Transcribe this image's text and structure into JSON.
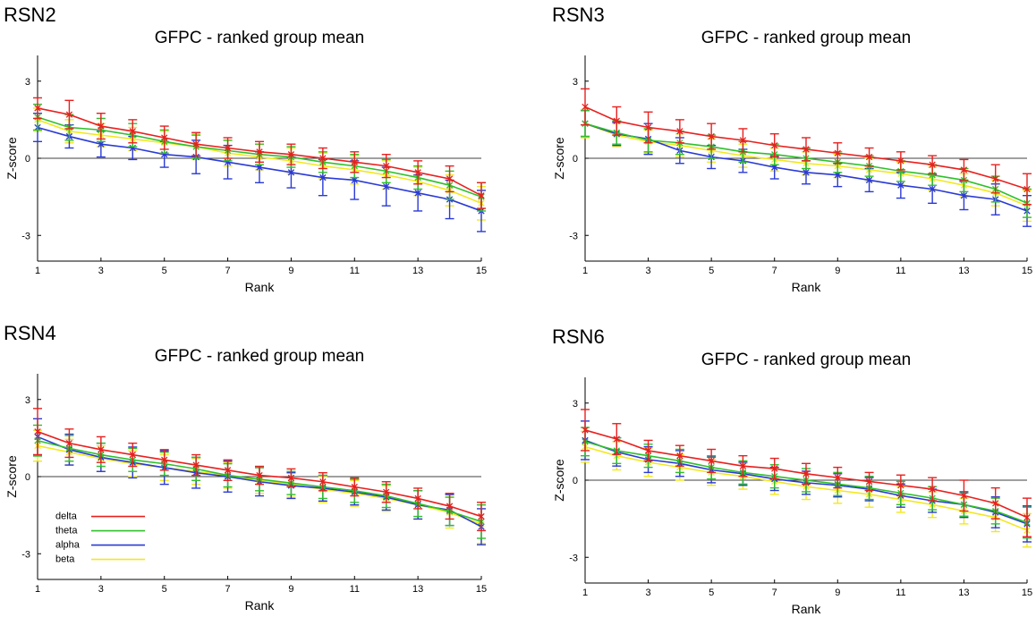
{
  "figure": {
    "legend": [
      {
        "name": "delta",
        "color": "#e8201e"
      },
      {
        "name": "theta",
        "color": "#2fc02a"
      },
      {
        "name": "alpha",
        "color": "#2a3ad6"
      },
      {
        "name": "beta",
        "color": "#f2e81e"
      }
    ]
  },
  "chart_data": [
    {
      "panel_label": "RSN2",
      "type": "line",
      "title": "GFPC - ranked group mean",
      "xlabel": "Rank",
      "ylabel": "Z-score",
      "xlim": [
        1,
        15
      ],
      "ylim": [
        -4,
        4
      ],
      "xticks": [
        1,
        3,
        5,
        7,
        9,
        11,
        13,
        15
      ],
      "yticks": [
        -3,
        0,
        3
      ],
      "legend_visible": false,
      "x": [
        1,
        2,
        3,
        4,
        5,
        6,
        7,
        8,
        9,
        10,
        11,
        12,
        13,
        14,
        15
      ],
      "series": [
        {
          "name": "delta",
          "values": [
            1.95,
            1.7,
            1.25,
            1.05,
            0.8,
            0.55,
            0.4,
            0.25,
            0.15,
            0.0,
            -0.15,
            -0.3,
            -0.55,
            -0.8,
            -1.45
          ],
          "errors": [
            0.4,
            0.55,
            0.5,
            0.45,
            0.45,
            0.45,
            0.4,
            0.4,
            0.4,
            0.4,
            0.4,
            0.45,
            0.45,
            0.5,
            0.5
          ]
        },
        {
          "name": "theta",
          "values": [
            1.6,
            1.2,
            1.1,
            0.9,
            0.65,
            0.45,
            0.3,
            0.15,
            0.05,
            -0.15,
            -0.3,
            -0.5,
            -0.75,
            -1.05,
            -1.5
          ],
          "errors": [
            0.5,
            0.5,
            0.45,
            0.45,
            0.45,
            0.45,
            0.4,
            0.4,
            0.4,
            0.4,
            0.45,
            0.45,
            0.45,
            0.55,
            0.55
          ]
        },
        {
          "name": "alpha",
          "values": [
            1.2,
            0.85,
            0.55,
            0.4,
            0.15,
            0.05,
            -0.15,
            -0.35,
            -0.55,
            -0.75,
            -0.85,
            -1.1,
            -1.35,
            -1.6,
            -2.05
          ],
          "errors": [
            0.55,
            0.45,
            0.5,
            0.45,
            0.5,
            0.65,
            0.65,
            0.6,
            0.6,
            0.7,
            0.75,
            0.75,
            0.7,
            0.75,
            0.8
          ]
        },
        {
          "name": "beta",
          "values": [
            1.5,
            1.05,
            0.9,
            0.75,
            0.6,
            0.45,
            0.2,
            0.05,
            -0.1,
            -0.3,
            -0.45,
            -0.65,
            -0.9,
            -1.25,
            -1.75
          ],
          "errors": [
            0.45,
            0.45,
            0.45,
            0.45,
            0.45,
            0.5,
            0.5,
            0.5,
            0.5,
            0.5,
            0.55,
            0.55,
            0.55,
            0.6,
            0.65
          ]
        }
      ]
    },
    {
      "panel_label": "RSN3",
      "type": "line",
      "title": "GFPC - ranked group mean",
      "xlabel": "Rank",
      "ylabel": "Z-score",
      "xlim": [
        1,
        15
      ],
      "ylim": [
        -4,
        4
      ],
      "xticks": [
        1,
        3,
        5,
        7,
        9,
        11,
        13,
        15
      ],
      "yticks": [
        -3,
        0,
        3
      ],
      "legend_visible": false,
      "x": [
        1,
        2,
        3,
        4,
        5,
        6,
        7,
        8,
        9,
        10,
        11,
        12,
        13,
        14,
        15
      ],
      "series": [
        {
          "name": "delta",
          "values": [
            2.0,
            1.45,
            1.2,
            1.05,
            0.85,
            0.7,
            0.5,
            0.35,
            0.2,
            0.05,
            -0.1,
            -0.25,
            -0.45,
            -0.8,
            -1.2
          ],
          "errors": [
            0.7,
            0.55,
            0.6,
            0.45,
            0.5,
            0.45,
            0.45,
            0.45,
            0.4,
            0.35,
            0.35,
            0.35,
            0.4,
            0.55,
            0.6
          ]
        },
        {
          "name": "theta",
          "values": [
            1.35,
            1.0,
            0.7,
            0.6,
            0.45,
            0.25,
            0.15,
            0.0,
            -0.15,
            -0.3,
            -0.5,
            -0.65,
            -0.85,
            -1.2,
            -1.75
          ],
          "errors": [
            0.5,
            0.45,
            0.45,
            0.45,
            0.45,
            0.4,
            0.4,
            0.4,
            0.4,
            0.4,
            0.4,
            0.4,
            0.45,
            0.5,
            0.55
          ]
        },
        {
          "name": "alpha",
          "values": [
            1.35,
            0.95,
            0.75,
            0.3,
            0.05,
            -0.1,
            -0.35,
            -0.55,
            -0.65,
            -0.85,
            -1.05,
            -1.2,
            -1.45,
            -1.6,
            -2.05
          ],
          "errors": [
            0.5,
            0.45,
            0.6,
            0.5,
            0.45,
            0.45,
            0.45,
            0.45,
            0.45,
            0.45,
            0.5,
            0.55,
            0.55,
            0.6,
            0.6
          ]
        },
        {
          "name": "beta",
          "values": [
            1.35,
            0.9,
            0.65,
            0.5,
            0.3,
            0.1,
            -0.05,
            -0.2,
            -0.3,
            -0.45,
            -0.6,
            -0.8,
            -1.05,
            -1.35,
            -1.85
          ],
          "errors": [
            0.55,
            0.45,
            0.45,
            0.45,
            0.45,
            0.45,
            0.45,
            0.45,
            0.45,
            0.45,
            0.45,
            0.45,
            0.45,
            0.5,
            0.6
          ]
        }
      ]
    },
    {
      "panel_label": "RSN4",
      "type": "line",
      "title": "GFPC - ranked group mean",
      "xlabel": "Rank",
      "ylabel": "Z-score",
      "xlim": [
        1,
        15
      ],
      "ylim": [
        -4,
        4
      ],
      "xticks": [
        1,
        3,
        5,
        7,
        9,
        11,
        13,
        15
      ],
      "yticks": [
        -3,
        0,
        3
      ],
      "legend_visible": true,
      "x": [
        1,
        2,
        3,
        4,
        5,
        6,
        7,
        8,
        9,
        10,
        11,
        12,
        13,
        14,
        15
      ],
      "series": [
        {
          "name": "delta",
          "values": [
            1.75,
            1.3,
            1.05,
            0.85,
            0.65,
            0.45,
            0.25,
            0.05,
            -0.05,
            -0.2,
            -0.4,
            -0.6,
            -0.85,
            -1.15,
            -1.55
          ],
          "errors": [
            0.9,
            0.55,
            0.5,
            0.45,
            0.4,
            0.4,
            0.4,
            0.35,
            0.35,
            0.35,
            0.35,
            0.4,
            0.4,
            0.5,
            0.55
          ]
        },
        {
          "name": "theta",
          "values": [
            1.4,
            1.1,
            0.85,
            0.65,
            0.5,
            0.3,
            0.05,
            -0.1,
            -0.25,
            -0.4,
            -0.55,
            -0.75,
            -1.05,
            -1.35,
            -1.75
          ],
          "errors": [
            0.6,
            0.5,
            0.45,
            0.45,
            0.45,
            0.45,
            0.45,
            0.45,
            0.45,
            0.45,
            0.45,
            0.45,
            0.5,
            0.55,
            0.65
          ]
        },
        {
          "name": "alpha",
          "values": [
            1.55,
            1.05,
            0.75,
            0.55,
            0.35,
            0.15,
            0.0,
            -0.2,
            -0.35,
            -0.45,
            -0.6,
            -0.8,
            -1.1,
            -1.3,
            -1.95
          ],
          "errors": [
            0.7,
            0.6,
            0.55,
            0.6,
            0.65,
            0.6,
            0.6,
            0.55,
            0.5,
            0.5,
            0.5,
            0.5,
            0.55,
            0.6,
            0.7
          ]
        },
        {
          "name": "beta",
          "values": [
            1.2,
            0.95,
            0.7,
            0.5,
            0.35,
            0.2,
            0.05,
            -0.15,
            -0.3,
            -0.5,
            -0.65,
            -0.85,
            -1.1,
            -1.4,
            -1.85
          ],
          "errors": [
            0.6,
            0.5,
            0.5,
            0.5,
            0.5,
            0.5,
            0.5,
            0.5,
            0.5,
            0.5,
            0.5,
            0.5,
            0.55,
            0.6,
            0.75
          ]
        }
      ]
    },
    {
      "panel_label": "RSN6",
      "type": "line",
      "title": "GFPC - ranked group mean",
      "xlabel": "Rank",
      "ylabel": "Z-score",
      "xlim": [
        1,
        15
      ],
      "ylim": [
        -4,
        4
      ],
      "xticks": [
        1,
        3,
        5,
        7,
        9,
        11,
        13,
        15
      ],
      "yticks": [
        -3,
        0,
        3
      ],
      "legend_visible": false,
      "x": [
        1,
        2,
        3,
        4,
        5,
        6,
        7,
        8,
        9,
        10,
        11,
        12,
        13,
        14,
        15
      ],
      "series": [
        {
          "name": "delta",
          "values": [
            1.95,
            1.6,
            1.15,
            0.95,
            0.75,
            0.55,
            0.45,
            0.25,
            0.1,
            -0.05,
            -0.2,
            -0.35,
            -0.6,
            -0.9,
            -1.45
          ],
          "errors": [
            0.8,
            0.6,
            0.4,
            0.4,
            0.45,
            0.4,
            0.4,
            0.4,
            0.4,
            0.35,
            0.4,
            0.45,
            0.6,
            0.6,
            0.75
          ]
        },
        {
          "name": "theta",
          "values": [
            1.5,
            1.15,
            0.95,
            0.75,
            0.5,
            0.3,
            0.15,
            0.0,
            -0.15,
            -0.3,
            -0.5,
            -0.7,
            -0.95,
            -1.2,
            -1.65
          ],
          "errors": [
            0.55,
            0.5,
            0.45,
            0.45,
            0.45,
            0.45,
            0.45,
            0.45,
            0.45,
            0.45,
            0.45,
            0.45,
            0.45,
            0.5,
            0.6
          ]
        },
        {
          "name": "alpha",
          "values": [
            1.55,
            1.1,
            0.8,
            0.65,
            0.4,
            0.25,
            0.05,
            -0.1,
            -0.2,
            -0.35,
            -0.6,
            -0.8,
            -0.95,
            -1.25,
            -1.7
          ],
          "errors": [
            0.75,
            0.55,
            0.5,
            0.5,
            0.5,
            0.45,
            0.45,
            0.45,
            0.45,
            0.45,
            0.45,
            0.45,
            0.5,
            0.6,
            0.7
          ]
        },
        {
          "name": "beta",
          "values": [
            1.3,
            0.95,
            0.7,
            0.5,
            0.3,
            0.15,
            -0.05,
            -0.25,
            -0.4,
            -0.55,
            -0.75,
            -0.95,
            -1.2,
            -1.45,
            -1.95
          ],
          "errors": [
            0.6,
            0.55,
            0.55,
            0.5,
            0.5,
            0.5,
            0.5,
            0.5,
            0.5,
            0.5,
            0.5,
            0.5,
            0.5,
            0.55,
            0.65
          ]
        }
      ]
    }
  ]
}
